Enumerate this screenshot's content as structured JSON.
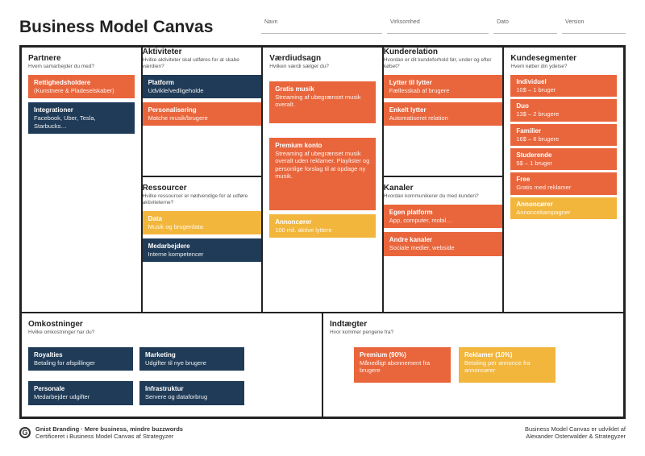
{
  "colors": {
    "orange": "#e9663c",
    "navy": "#1f3b57",
    "yellow": "#f2b63c"
  },
  "title": "Business Model Canvas",
  "meta": [
    {
      "label": "Navn"
    },
    {
      "label": "Virksomhed"
    },
    {
      "label": "Dato"
    },
    {
      "label": "Version"
    }
  ],
  "sections": {
    "partners": {
      "title": "Partnere",
      "sub": "Hvem samarbejder du med?",
      "cards": [
        {
          "c": "orange",
          "t": "Rettighedsholdere",
          "d": "(Kunstnere & Pladeselskaber)"
        },
        {
          "c": "navy",
          "t": "Integrationer",
          "d": "Facebook, Uber, Tesla, Starbucks…"
        }
      ]
    },
    "activities": {
      "title": "Aktiviteter",
      "sub": "Hvilke aktiviteter skal udføres for at skabe værdien?",
      "cards": [
        {
          "c": "navy",
          "t": "Platform",
          "d": "Udvikle/vedligeholde"
        },
        {
          "c": "orange",
          "t": "Personalisering",
          "d": "Matche musik/brugere"
        }
      ]
    },
    "resources": {
      "title": "Ressourcer",
      "sub": "Hvilke ressourcer er nødvendige for at udføre aktiviteterne?",
      "cards": [
        {
          "c": "yellow",
          "t": "Data",
          "d": "Musik og brugerdata"
        },
        {
          "c": "navy",
          "t": "Medarbejdere",
          "d": "Interne kompetencer"
        }
      ]
    },
    "value": {
      "title": "Værdiudsagn",
      "sub": "Hvilken værdi sælger du?",
      "cards": [
        {
          "c": "orange",
          "t": "Gratis musik",
          "d": "Streaming af ubegrænset musik overalt."
        },
        {
          "c": "orange",
          "t": "Premium konto",
          "d": "Streaming af ubegrænset musik overalt uden reklamer. Playlister og personlige forslag til at opdage ny musik."
        },
        {
          "c": "yellow",
          "t": "Annoncører",
          "d": "100 mil. aktive lyttere"
        }
      ]
    },
    "relations": {
      "title": "Kunderelation",
      "sub": "Hvordan er dit kundeforhold før, under og efter købet?",
      "cards": [
        {
          "c": "orange",
          "t": "Lytter til lytter",
          "d": "Fællesskab af brugere"
        },
        {
          "c": "orange",
          "t": "Enkelt lytter",
          "d": "Automatiseret relation"
        }
      ]
    },
    "channels": {
      "title": "Kanaler",
      "sub": "Hvordan kommunikerer du med kunden?",
      "cards": [
        {
          "c": "orange",
          "t": "Egen platform",
          "d": "App, computer, mobil…"
        },
        {
          "c": "orange",
          "t": "Andre kanaler",
          "d": "Sociale medier, webside"
        }
      ]
    },
    "segments": {
      "title": "Kundesegmenter",
      "sub": "Hvem køber din ydelse?",
      "cards": [
        {
          "c": "orange",
          "t": "Individuel",
          "d": "10$ – 1 bruger"
        },
        {
          "c": "orange",
          "t": "Duo",
          "d": "13$ – 2 brugere"
        },
        {
          "c": "orange",
          "t": "Familier",
          "d": "16$ – 6 brugere"
        },
        {
          "c": "orange",
          "t": "Studerende",
          "d": "5$ – 1 bruger"
        },
        {
          "c": "orange",
          "t": "Free",
          "d": "Gratis med reklamer"
        },
        {
          "c": "yellow",
          "t": "Annoncører",
          "d": "Annoncekampagner"
        }
      ]
    },
    "costs": {
      "title": "Omkostninger",
      "sub": "Hvilke omkostninger har du?",
      "cards": [
        {
          "c": "navy",
          "t": "Royalties",
          "d": "Betaling for afspillinger"
        },
        {
          "c": "navy",
          "t": "Marketing",
          "d": "Udgifter til nye brugere"
        },
        {
          "c": "navy",
          "t": "Personale",
          "d": "Medarbejder udgifter"
        },
        {
          "c": "navy",
          "t": "Infrastruktur",
          "d": "Servere og dataforbrug"
        }
      ]
    },
    "revenue": {
      "title": "Indtægter",
      "sub": "Hvor kommer pengene fra?",
      "cards": [
        {
          "c": "orange",
          "t": "Premium (90%)",
          "d": "Månedligt abonnement fra brugere"
        },
        {
          "c": "yellow",
          "t": "Reklamer (10%)",
          "d": "Betaling per annonce fra annoncører"
        }
      ]
    }
  },
  "footer": {
    "left_bold": "Gnist Branding · Mere business, mindre buzzwords",
    "left_sub": "Certificeret i Business Model Canvas af Strategyzer",
    "right_l1": "Business Model Canvas er udviklet af",
    "right_l2": "Alexander Osterwalder & Strategyzer"
  }
}
